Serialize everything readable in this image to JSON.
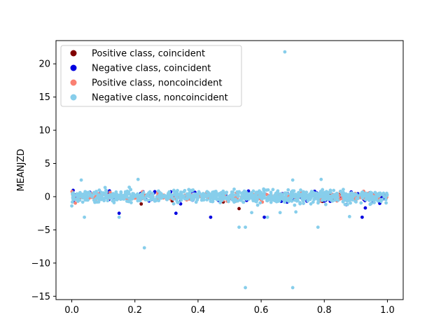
{
  "chart_data": {
    "type": "scatter",
    "title": "",
    "xlabel": "",
    "ylabel": "MEANJZD",
    "xlim": [
      -0.05,
      1.05
    ],
    "ylim": [
      -15.5,
      23.5
    ],
    "xticks": [
      0.0,
      0.2,
      0.4,
      0.6,
      0.8,
      1.0
    ],
    "xtick_labels": [
      "0.0",
      "0.2",
      "0.4",
      "0.6",
      "0.8",
      "1.0"
    ],
    "yticks": [
      -15,
      -10,
      -5,
      0,
      5,
      10,
      15,
      20
    ],
    "ytick_labels": [
      "−15",
      "−10",
      "−5",
      "0",
      "5",
      "10",
      "15",
      "20"
    ],
    "grid": false,
    "legend_position": "top-left",
    "series": [
      {
        "name": "Positive class, coincident",
        "color": "#800000",
        "count": 18,
        "outliers": [
          [
            0.22,
            -1.1
          ],
          [
            0.48,
            -0.8
          ],
          [
            0.53,
            -1.8
          ]
        ]
      },
      {
        "name": "Negative class, coincident",
        "color": "#0000e0",
        "count": 110,
        "outliers": [
          [
            0.15,
            -2.5
          ],
          [
            0.33,
            -2.5
          ],
          [
            0.44,
            -3.1
          ],
          [
            0.92,
            -3.1
          ],
          [
            0.93,
            -1.7
          ],
          [
            0.61,
            -3.1
          ],
          [
            0.87,
            -1.2
          ]
        ]
      },
      {
        "name": "Positive class, noncoincident",
        "color": "#fa8072",
        "count": 240,
        "outliers": []
      },
      {
        "name": "Negative class, noncoincident",
        "color": "#87ceeb",
        "count": 900,
        "outliers": [
          [
            0.675,
            21.8
          ],
          [
            0.23,
            -7.7
          ],
          [
            0.55,
            -13.7
          ],
          [
            0.7,
            -13.7
          ],
          [
            0.53,
            -4.6
          ],
          [
            0.55,
            -4.6
          ],
          [
            0.78,
            -4.6
          ],
          [
            0.04,
            -3.1
          ],
          [
            0.15,
            -3.1
          ],
          [
            0.62,
            -3.1
          ],
          [
            0.88,
            -3.0
          ],
          [
            0.21,
            2.6
          ],
          [
            0.79,
            2.6
          ],
          [
            0.7,
            2.5
          ],
          [
            0.03,
            2.5
          ],
          [
            0.0,
            -1.4
          ],
          [
            0.57,
            -2.4
          ],
          [
            0.66,
            -2.4
          ],
          [
            0.71,
            -2.3
          ]
        ]
      }
    ]
  }
}
